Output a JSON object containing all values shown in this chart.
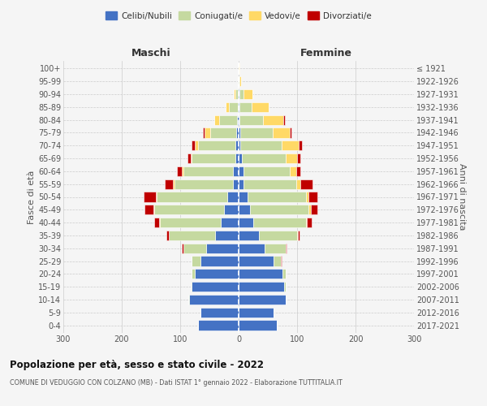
{
  "age_groups": [
    "0-4",
    "5-9",
    "10-14",
    "15-19",
    "20-24",
    "25-29",
    "30-34",
    "35-39",
    "40-44",
    "45-49",
    "50-54",
    "55-59",
    "60-64",
    "65-69",
    "70-74",
    "75-79",
    "80-84",
    "85-89",
    "90-94",
    "95-99",
    "100+"
  ],
  "birth_years": [
    "2017-2021",
    "2012-2016",
    "2007-2011",
    "2002-2006",
    "1997-2001",
    "1992-1996",
    "1987-1991",
    "1982-1986",
    "1977-1981",
    "1972-1976",
    "1967-1971",
    "1962-1966",
    "1957-1961",
    "1952-1956",
    "1947-1951",
    "1942-1946",
    "1937-1941",
    "1932-1936",
    "1927-1931",
    "1922-1926",
    "≤ 1921"
  ],
  "males": {
    "celibi": [
      70,
      65,
      85,
      80,
      75,
      65,
      55,
      40,
      30,
      25,
      20,
      10,
      10,
      5,
      5,
      4,
      3,
      2,
      1,
      0,
      0
    ],
    "coniugati": [
      0,
      0,
      1,
      2,
      5,
      15,
      40,
      80,
      105,
      120,
      120,
      100,
      85,
      75,
      65,
      45,
      30,
      15,
      5,
      1,
      0
    ],
    "vedovi": [
      0,
      0,
      0,
      0,
      0,
      0,
      0,
      0,
      1,
      1,
      2,
      2,
      2,
      2,
      5,
      10,
      8,
      5,
      3,
      0,
      0
    ],
    "divorziati": [
      0,
      0,
      0,
      0,
      0,
      1,
      2,
      3,
      8,
      15,
      20,
      15,
      8,
      5,
      5,
      2,
      0,
      0,
      0,
      0,
      0
    ]
  },
  "females": {
    "nubili": [
      65,
      60,
      80,
      78,
      75,
      60,
      45,
      35,
      25,
      20,
      15,
      8,
      8,
      5,
      3,
      3,
      2,
      2,
      1,
      0,
      0
    ],
    "coniugate": [
      0,
      0,
      1,
      2,
      5,
      12,
      35,
      65,
      90,
      100,
      100,
      90,
      80,
      75,
      70,
      55,
      40,
      20,
      8,
      1,
      0
    ],
    "vedove": [
      0,
      0,
      0,
      0,
      0,
      0,
      0,
      1,
      2,
      3,
      5,
      8,
      10,
      20,
      30,
      30,
      35,
      30,
      15,
      3,
      1
    ],
    "divorziate": [
      0,
      0,
      0,
      0,
      0,
      1,
      2,
      3,
      8,
      12,
      15,
      20,
      8,
      5,
      5,
      2,
      2,
      0,
      0,
      0,
      0
    ]
  },
  "colors": {
    "celibi": "#4472C4",
    "coniugati": "#C5D9A0",
    "vedovi": "#FFD966",
    "divorziati": "#C00000"
  },
  "xlim": 300,
  "title": "Popolazione per età, sesso e stato civile - 2022",
  "subtitle": "COMUNE DI VEDUGGIO CON COLZANO (MB) - Dati ISTAT 1° gennaio 2022 - Elaborazione TUTTITALIA.IT",
  "ylabel_left": "Fasce di età",
  "ylabel_right": "Anni di nascita",
  "xlabel_left": "Maschi",
  "xlabel_right": "Femmine",
  "legend_labels": [
    "Celibi/Nubili",
    "Coniugati/e",
    "Vedovi/e",
    "Divorziati/e"
  ],
  "bg_color": "#f5f5f5"
}
